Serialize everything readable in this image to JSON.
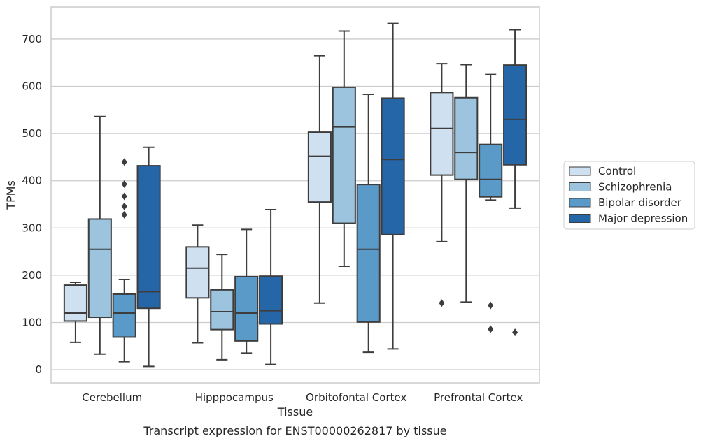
{
  "chart_data": {
    "type": "box",
    "title": "",
    "caption": "Transcript expression for ENST00000262817 by tissue",
    "xlabel": "Tissue",
    "ylabel": "TPMs",
    "ylim": [
      -28,
      768
    ],
    "yticks": [
      0,
      100,
      200,
      300,
      400,
      500,
      600,
      700
    ],
    "grid": "horizontal",
    "legend_position": "right",
    "categories": [
      "Cerebellum",
      "Hipppocampus",
      "Orbitofontal Cortex",
      "Prefrontal Cortex"
    ],
    "series": [
      {
        "name": "Control",
        "color": "#cfe0f1",
        "boxes": [
          {
            "whislo": 58,
            "q1": 103,
            "med": 120,
            "q3": 179,
            "whishi": 185,
            "fliers": []
          },
          {
            "whislo": 57,
            "q1": 152,
            "med": 215,
            "q3": 260,
            "whishi": 306,
            "fliers": []
          },
          {
            "whislo": 141,
            "q1": 355,
            "med": 452,
            "q3": 503,
            "whishi": 665,
            "fliers": []
          },
          {
            "whislo": 271,
            "q1": 412,
            "med": 511,
            "q3": 587,
            "whishi": 648,
            "fliers": [
              141
            ]
          }
        ]
      },
      {
        "name": "Schizophrenia",
        "color": "#9cc4de",
        "boxes": [
          {
            "whislo": 33,
            "q1": 111,
            "med": 255,
            "q3": 319,
            "whishi": 536,
            "fliers": []
          },
          {
            "whislo": 21,
            "q1": 85,
            "med": 123,
            "q3": 169,
            "whishi": 244,
            "fliers": []
          },
          {
            "whislo": 219,
            "q1": 310,
            "med": 514,
            "q3": 598,
            "whishi": 717,
            "fliers": []
          },
          {
            "whislo": 143,
            "q1": 403,
            "med": 460,
            "q3": 576,
            "whishi": 646,
            "fliers": []
          }
        ]
      },
      {
        "name": "Bipolar disorder",
        "color": "#5a9ac8",
        "boxes": [
          {
            "whislo": 17,
            "q1": 69,
            "med": 120,
            "q3": 160,
            "whishi": 191,
            "fliers": [
              440,
              367,
              346,
              393,
              328
            ]
          },
          {
            "whislo": 35,
            "q1": 61,
            "med": 120,
            "q3": 197,
            "whishi": 297,
            "fliers": []
          },
          {
            "whislo": 37,
            "q1": 101,
            "med": 255,
            "q3": 392,
            "whishi": 583,
            "fliers": []
          },
          {
            "whislo": 359,
            "q1": 366,
            "med": 403,
            "q3": 477,
            "whishi": 625,
            "fliers": [
              136,
              86
            ]
          }
        ]
      },
      {
        "name": "Major depression",
        "color": "#2566a8",
        "boxes": [
          {
            "whislo": 7,
            "q1": 130,
            "med": 165,
            "q3": 432,
            "whishi": 471,
            "fliers": []
          },
          {
            "whislo": 11,
            "q1": 97,
            "med": 125,
            "q3": 198,
            "whishi": 339,
            "fliers": []
          },
          {
            "whislo": 44,
            "q1": 286,
            "med": 445,
            "q3": 575,
            "whishi": 733,
            "fliers": []
          },
          {
            "whislo": 342,
            "q1": 434,
            "med": 530,
            "q3": 645,
            "whishi": 720,
            "fliers": [
              79
            ]
          }
        ]
      }
    ]
  }
}
